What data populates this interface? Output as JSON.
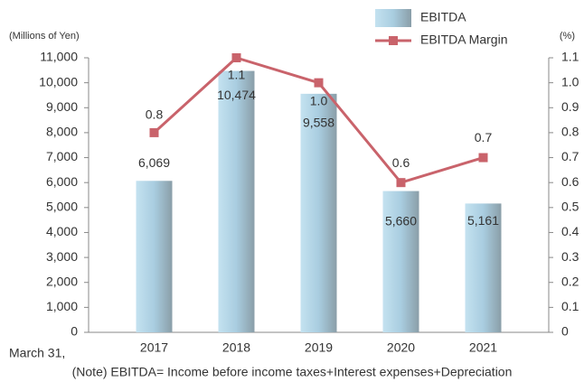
{
  "chart_data": {
    "type": "bar-line",
    "y_axis_label": "(Millions of Yen)",
    "y2_axis_label": "(%)",
    "x_axis_label": "March 31,",
    "note": "(Note) EBITDA= Income before income taxes+Interest expenses+Depreciation",
    "categories": [
      "2017",
      "2018",
      "2019",
      "2020",
      "2021"
    ],
    "series": [
      {
        "name": "EBITDA",
        "type": "bar",
        "color": "#a9cde0",
        "values": [
          6069,
          10474,
          9558,
          5660,
          5161
        ],
        "value_labels": [
          "6,069",
          "10,474",
          "9,558",
          "5,660",
          "5,161"
        ]
      },
      {
        "name": "EBITDA Margin",
        "type": "line",
        "axis": "y2",
        "color": "#c9636b",
        "values": [
          0.8,
          1.1,
          1,
          0.6,
          0.7
        ],
        "value_labels": [
          "0.8",
          "1.1",
          "1.0",
          "0.6",
          "0.7"
        ]
      }
    ],
    "ylim": [
      0,
      11000
    ],
    "yticks": [
      0,
      {
        "value": 1000,
        "label": "1,000"
      },
      {
        "value": 2000,
        "label": "2,000"
      },
      {
        "value": 3000,
        "label": "3,000"
      },
      {
        "value": 4000,
        "label": "4,000"
      },
      {
        "value": 5000,
        "label": "5,000"
      },
      {
        "value": 6000,
        "label": "6,000"
      },
      {
        "value": 7000,
        "label": "7,000"
      },
      {
        "value": 8000,
        "label": "8,000"
      },
      {
        "value": 9000,
        "label": "9,000"
      },
      {
        "value": 10000,
        "label": "10,000"
      },
      {
        "value": 11000,
        "label": "11,000"
      }
    ],
    "y2lim": [
      0,
      1.1
    ],
    "y2ticks": [
      0,
      0.1,
      0.2,
      0.3,
      0.4,
      0.5,
      0.6,
      0.7,
      0.8,
      0.9,
      {
        "value": 1,
        "label": "1.0"
      },
      1.1
    ],
    "grid": false
  }
}
